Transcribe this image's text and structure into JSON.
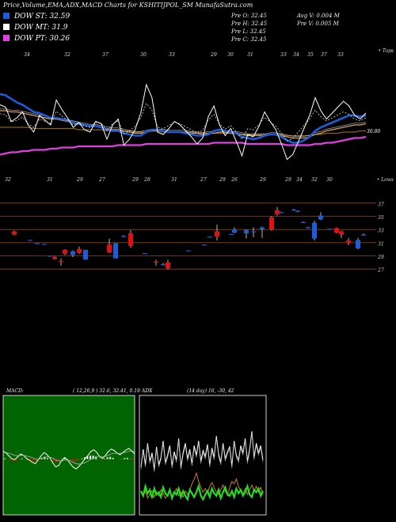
{
  "title": "Price,Volume,EMA,ADX,MACD Charts for KSHITIJPOL_SM MunafaSutra.com",
  "legend": [
    {
      "label": "DOW ST: 32.59",
      "color": "#1e5bd8"
    },
    {
      "label": "DOW MT: 31.9",
      "color": "#ffffff"
    },
    {
      "label": "DOW PT: 30.26",
      "color": "#e040e0"
    }
  ],
  "ohlc_info": {
    "open": "Pre O: 32.45",
    "high": "Pre H: 32.45",
    "low": "Pre L: 32.45",
    "close": "Pre C: 32.45",
    "avg_vol": "Avg V: 0.004 M",
    "pre_vol": "Pre V: 0.005 M"
  },
  "colors": {
    "up": "#1e5bd8",
    "down": "#e01010",
    "ema_fast": "#1e5bd8",
    "ema_mid": "#d8a060",
    "ema_slow": "#8a6020",
    "pt": "#e040e0",
    "grid": "#8b4513"
  },
  "chart_data": [
    {
      "type": "line",
      "name": "ema-panel",
      "top_numbers": [
        "34",
        "32",
        "37",
        "30",
        "33",
        "29",
        "30",
        "31",
        "33",
        "34",
        "35",
        "37",
        "33"
      ],
      "bottom_numbers": [
        "32",
        "31",
        "29",
        "27",
        "29",
        "28",
        "31",
        "27",
        "29",
        "26",
        "29",
        "29",
        "34",
        "32",
        "30"
      ],
      "right_top_label": "• Tops",
      "right_bottom_label": "• Lows",
      "last_value_label": "30.80",
      "price": [
        33.5,
        33.3,
        32.1,
        32.4,
        32.9,
        31.8,
        31.2,
        32.6,
        32.2,
        31.8,
        33.9,
        33.1,
        32.4,
        31.6,
        32.0,
        31.4,
        31.2,
        32.1,
        31.9,
        30.6,
        31.8,
        32.3,
        30.1,
        30.6,
        31.4,
        32.8,
        35.2,
        34.1,
        31.2,
        31.0,
        31.5,
        32.1,
        31.8,
        31.3,
        30.8,
        30.2,
        30.7,
        32.5,
        33.4,
        31.8,
        30.9,
        31.5,
        30.4,
        29.2,
        31.0,
        30.8,
        31.7,
        32.9,
        32.1,
        31.4,
        30.2,
        28.9,
        29.3,
        30.4,
        31.5,
        32.6,
        34.1,
        33.0,
        32.3,
        32.8,
        33.3,
        33.8,
        33.4,
        32.6,
        32.3,
        32.8
      ],
      "ema_fast": [
        34.4,
        34.3,
        34.0,
        33.7,
        33.5,
        33.2,
        32.9,
        32.8,
        32.6,
        32.4,
        32.4,
        32.3,
        32.2,
        32.0,
        31.9,
        31.8,
        31.7,
        31.7,
        31.6,
        31.4,
        31.3,
        31.3,
        31.1,
        31.0,
        30.9,
        30.9,
        31.2,
        31.4,
        31.4,
        31.3,
        31.2,
        31.2,
        31.2,
        31.1,
        31.0,
        30.9,
        30.9,
        31.0,
        31.3,
        31.4,
        31.3,
        31.2,
        31.1,
        30.8,
        30.7,
        30.6,
        30.7,
        30.9,
        31.0,
        31.0,
        30.8,
        30.5,
        30.3,
        30.3,
        30.5,
        30.8,
        31.3,
        31.6,
        31.8,
        32.0,
        32.2,
        32.4,
        32.6,
        32.6,
        32.5,
        32.6
      ],
      "ema_mid": [
        33.0,
        33.0,
        32.9,
        32.9,
        32.8,
        32.7,
        32.6,
        32.5,
        32.4,
        32.3,
        32.3,
        32.2,
        32.1,
        32.0,
        31.9,
        31.8,
        31.7,
        31.7,
        31.6,
        31.5,
        31.4,
        31.4,
        31.3,
        31.2,
        31.1,
        31.1,
        31.2,
        31.3,
        31.3,
        31.3,
        31.2,
        31.2,
        31.2,
        31.2,
        31.1,
        31.1,
        31.0,
        31.1,
        31.1,
        31.2,
        31.2,
        31.1,
        31.1,
        31.0,
        30.9,
        30.9,
        30.9,
        30.9,
        31.0,
        31.0,
        30.9,
        30.8,
        30.7,
        30.7,
        30.7,
        30.8,
        31.0,
        31.1,
        31.3,
        31.4,
        31.5,
        31.6,
        31.7,
        31.8,
        31.8,
        31.9
      ],
      "ema_slow": [
        31.6,
        31.6,
        31.6,
        31.6,
        31.6,
        31.6,
        31.5,
        31.5,
        31.5,
        31.5,
        31.5,
        31.5,
        31.5,
        31.5,
        31.4,
        31.4,
        31.4,
        31.4,
        31.4,
        31.3,
        31.3,
        31.3,
        31.3,
        31.3,
        31.2,
        31.2,
        31.2,
        31.3,
        31.3,
        31.2,
        31.2,
        31.2,
        31.2,
        31.2,
        31.2,
        31.1,
        31.1,
        31.1,
        31.1,
        31.1,
        31.1,
        31.1,
        31.1,
        31.0,
        31.0,
        31.0,
        31.0,
        31.0,
        31.0,
        31.0,
        31.0,
        30.9,
        30.9,
        30.9,
        30.9,
        30.9,
        31.0,
        31.0,
        31.1,
        31.1,
        31.1,
        31.2,
        31.2,
        31.2,
        31.3,
        31.3
      ],
      "pt": [
        29.3,
        29.4,
        29.5,
        29.5,
        29.6,
        29.6,
        29.7,
        29.7,
        29.7,
        29.8,
        29.8,
        29.9,
        29.9,
        29.9,
        30.0,
        30.0,
        30.0,
        30.0,
        30.0,
        30.0,
        30.0,
        30.1,
        30.1,
        30.1,
        30.1,
        30.1,
        30.2,
        30.2,
        30.2,
        30.2,
        30.2,
        30.2,
        30.2,
        30.2,
        30.2,
        30.2,
        30.2,
        30.2,
        30.3,
        30.3,
        30.3,
        30.3,
        30.3,
        30.3,
        30.2,
        30.2,
        30.2,
        30.2,
        30.2,
        30.2,
        30.2,
        30.1,
        30.1,
        30.1,
        30.1,
        30.1,
        30.2,
        30.2,
        30.3,
        30.3,
        30.4,
        30.5,
        30.6,
        30.7,
        30.7,
        30.8
      ],
      "ylim": [
        28.0,
        37.0
      ]
    },
    {
      "type": "bar",
      "name": "candlestick-panel",
      "y_ticks": [
        "37",
        "35",
        "33",
        "31",
        "29",
        "27"
      ],
      "ylim": [
        26.0,
        38.0
      ],
      "candles": [
        {
          "o": 32.9,
          "h": 33.0,
          "l": 32.3,
          "c": 32.4,
          "up": false
        },
        {
          "o": 31.6,
          "h": 31.6,
          "l": 31.6,
          "c": 31.6,
          "up": true
        },
        {
          "o": 31.1,
          "h": 31.1,
          "l": 31.1,
          "c": 31.1,
          "up": true
        },
        {
          "o": 31.0,
          "h": 31.0,
          "l": 31.0,
          "c": 31.0,
          "up": true
        },
        {
          "o": 29.2,
          "h": 29.2,
          "l": 29.2,
          "c": 29.2,
          "up": true
        },
        {
          "o": 29.0,
          "h": 29.1,
          "l": 28.6,
          "c": 28.7,
          "up": false
        },
        {
          "o": 28.4,
          "h": 28.8,
          "l": 27.7,
          "c": 28.3,
          "up": false
        },
        {
          "o": 29.5,
          "h": 30.2,
          "l": 29.3,
          "c": 30.1,
          "up": false
        },
        {
          "o": 29.3,
          "h": 30.0,
          "l": 29.0,
          "c": 29.9,
          "up": true
        },
        {
          "o": 30.2,
          "h": 30.6,
          "l": 29.5,
          "c": 29.6,
          "up": false
        },
        {
          "o": 30.1,
          "h": 30.1,
          "l": 28.6,
          "c": 28.6,
          "up": true
        },
        {
          "o": 30.9,
          "h": 31.8,
          "l": 29.6,
          "c": 29.7,
          "up": false
        },
        {
          "o": 31.1,
          "h": 31.1,
          "l": 28.8,
          "c": 28.8,
          "up": true
        },
        {
          "o": 32.2,
          "h": 32.3,
          "l": 32.0,
          "c": 32.1,
          "up": true
        },
        {
          "o": 32.6,
          "h": 33.1,
          "l": 30.4,
          "c": 30.7,
          "up": false
        },
        {
          "o": 29.6,
          "h": 29.6,
          "l": 29.6,
          "c": 29.6,
          "up": true
        },
        {
          "o": 28.3,
          "h": 28.6,
          "l": 27.7,
          "c": 28.2,
          "up": false
        },
        {
          "o": 27.9,
          "h": 28.1,
          "l": 27.7,
          "c": 27.8,
          "up": true
        },
        {
          "o": 28.2,
          "h": 28.6,
          "l": 27.1,
          "c": 27.3,
          "up": false
        },
        {
          "o": 30.0,
          "h": 30.0,
          "l": 30.0,
          "c": 30.0,
          "up": true
        },
        {
          "o": 30.9,
          "h": 30.9,
          "l": 30.9,
          "c": 30.9,
          "up": true
        },
        {
          "o": 32.1,
          "h": 32.1,
          "l": 32.1,
          "c": 32.1,
          "up": true
        },
        {
          "o": 32.9,
          "h": 33.9,
          "l": 31.5,
          "c": 32.1,
          "up": false
        },
        {
          "o": 32.5,
          "h": 32.5,
          "l": 32.5,
          "c": 32.5,
          "up": true
        },
        {
          "o": 32.7,
          "h": 33.5,
          "l": 32.6,
          "c": 33.2,
          "up": true
        },
        {
          "o": 32.6,
          "h": 33.2,
          "l": 31.8,
          "c": 33.1,
          "up": true
        },
        {
          "o": 32.8,
          "h": 33.5,
          "l": 32.0,
          "c": 32.9,
          "up": true
        },
        {
          "o": 33.2,
          "h": 33.6,
          "l": 31.9,
          "c": 33.5,
          "up": true
        },
        {
          "o": 35.0,
          "h": 35.2,
          "l": 33.0,
          "c": 33.2,
          "up": false
        },
        {
          "o": 36.1,
          "h": 36.6,
          "l": 35.3,
          "c": 35.5,
          "up": false
        },
        {
          "o": 35.8,
          "h": 35.9,
          "l": 35.7,
          "c": 35.8,
          "up": true
        },
        {
          "o": 36.1,
          "h": 36.3,
          "l": 36.0,
          "c": 36.2,
          "up": true
        },
        {
          "o": 35.9,
          "h": 36.1,
          "l": 35.8,
          "c": 36.0,
          "up": true
        },
        {
          "o": 34.3,
          "h": 34.4,
          "l": 34.2,
          "c": 34.3,
          "up": true
        },
        {
          "o": 33.5,
          "h": 33.6,
          "l": 33.4,
          "c": 33.5,
          "up": true
        },
        {
          "o": 34.2,
          "h": 34.5,
          "l": 31.5,
          "c": 31.8,
          "up": true
        },
        {
          "o": 35.3,
          "h": 35.8,
          "l": 34.6,
          "c": 34.7,
          "up": true
        },
        {
          "o": 33.3,
          "h": 33.3,
          "l": 33.3,
          "c": 33.3,
          "up": true
        },
        {
          "o": 33.4,
          "h": 33.5,
          "l": 32.6,
          "c": 32.7,
          "up": false
        },
        {
          "o": 32.4,
          "h": 33.0,
          "l": 31.9,
          "c": 32.9,
          "up": false
        },
        {
          "o": 31.5,
          "h": 31.9,
          "l": 30.8,
          "c": 31.1,
          "up": false
        },
        {
          "o": 31.6,
          "h": 31.9,
          "l": 30.2,
          "c": 30.3,
          "up": true
        },
        {
          "o": 32.4,
          "h": 32.6,
          "l": 32.3,
          "c": 32.4,
          "up": true
        }
      ]
    },
    {
      "type": "line",
      "name": "macd-panel",
      "label": "MACD:",
      "params": "( 12,26,9 ) 32.6, 32.41, 0.19",
      "macd": [
        3,
        2.5,
        1.6,
        0.8,
        0.6,
        1.4,
        2.2,
        1.8,
        0.9,
        0.4,
        -0.2,
        -0.6,
        0.5,
        1.7,
        2.6,
        2.0,
        1.1,
        -0.4,
        -1.5,
        -1.1,
        0.3,
        1.2,
        0.5,
        -0.6,
        -1.6,
        -2.1,
        -1.3,
        -0.3,
        0.8,
        1.8,
        2.9,
        3.4,
        2.7,
        1.5,
        0.9,
        1.8,
        2.9,
        3.6,
        3.2,
        2.4,
        2.0,
        2.6,
        3.3,
        3.8,
        3.1,
        2.2
      ],
      "signal": [
        2.6,
        2.6,
        2.4,
        2.1,
        1.8,
        1.7,
        1.8,
        1.8,
        1.6,
        1.4,
        1.1,
        0.8,
        0.7,
        0.9,
        1.2,
        1.4,
        1.3,
        1.0,
        0.5,
        0.2,
        0.2,
        0.4,
        0.4,
        0.2,
        -0.2,
        -0.6,
        -0.7,
        -0.6,
        -0.3,
        0.1,
        0.7,
        1.2,
        1.5,
        1.5,
        1.4,
        1.5,
        1.8,
        2.2,
        2.4,
        2.4,
        2.4,
        2.5,
        2.7,
        3.0,
        3.0,
        2.9
      ],
      "histogram": [
        0.4,
        -0.1,
        -0.8,
        -1.3,
        -1.2,
        -0.3,
        0.4,
        0.0,
        -0.7,
        -1.0,
        -1.3,
        -1.4,
        -0.2,
        0.8,
        1.4,
        0.6,
        -0.2,
        -1.4,
        -2.0,
        -1.3,
        0.1,
        0.8,
        0.1,
        -0.8,
        -1.4,
        -1.5,
        -0.6,
        0.3,
        1.1,
        1.7,
        2.2,
        2.2,
        1.2,
        0.0,
        -0.5,
        0.3,
        1.1,
        1.4,
        0.8,
        0.0,
        -0.4,
        0.1,
        0.6,
        0.8,
        0.1,
        -0.7
      ],
      "ylim": [
        -12,
        12
      ]
    },
    {
      "type": "line",
      "name": "adx-panel",
      "label": "ADX",
      "params": "(14 day) 16, -30, 42",
      "adx": [
        40,
        55,
        42,
        60,
        45,
        52,
        38,
        57,
        42,
        48,
        62,
        44,
        50,
        58,
        41,
        53,
        46,
        64,
        40,
        52,
        60,
        47,
        55,
        43,
        58,
        50,
        62,
        45,
        54,
        49,
        59,
        42,
        56,
        48,
        66,
        51,
        44,
        60,
        47,
        53,
        57,
        41,
        62,
        50,
        46,
        58,
        52,
        64,
        45,
        55,
        70,
        48,
        60,
        52,
        58,
        46
      ],
      "plus_di": [
        34,
        30,
        38,
        32,
        35,
        28,
        36,
        31,
        33,
        29,
        37,
        32,
        30,
        35,
        28,
        33,
        31,
        36,
        29,
        34,
        30,
        27,
        35,
        32,
        29,
        33,
        38,
        30,
        27,
        31,
        34,
        29,
        36,
        32,
        30,
        35,
        28,
        33,
        37,
        31,
        30,
        34,
        29,
        36,
        32,
        35,
        30,
        33,
        38,
        31,
        29,
        35,
        33,
        36,
        30,
        34
      ],
      "minus_di": [
        28,
        26,
        30,
        24,
        27,
        30,
        25,
        29,
        26,
        31,
        28,
        24,
        27,
        30,
        25,
        28,
        32,
        26,
        29,
        25,
        30,
        27,
        31,
        36,
        40,
        45,
        38,
        33,
        29,
        32,
        28,
        34,
        37,
        33,
        29,
        27,
        31,
        35,
        30,
        26,
        33,
        38,
        36,
        40,
        34,
        30,
        28,
        32,
        27,
        31,
        35,
        30,
        34,
        29,
        33,
        27
      ],
      "ylim": [
        0,
        100
      ]
    }
  ]
}
